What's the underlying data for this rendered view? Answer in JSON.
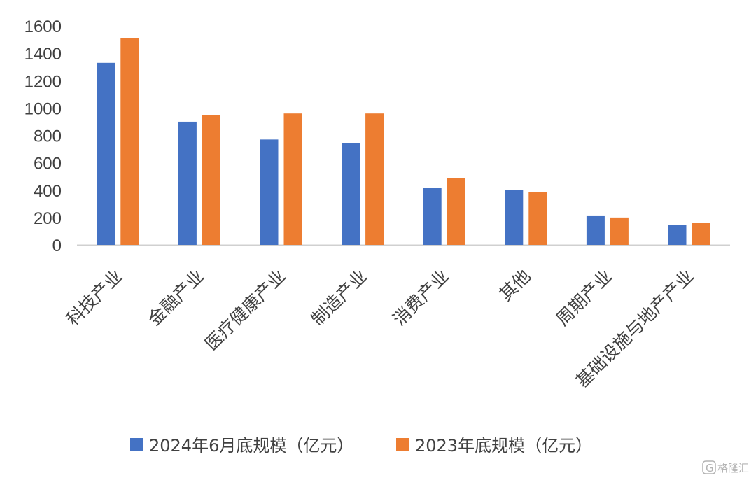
{
  "chart_data": {
    "type": "bar",
    "categories": [
      "科技产业",
      "金融产业",
      "医疗健康产业",
      "制造产业",
      "消费产业",
      "其他",
      "周期产业",
      "基础设施与地产产业"
    ],
    "series": [
      {
        "name": "2024年6月底规模（亿元）",
        "color": "#4472C4",
        "values": [
          1330,
          900,
          770,
          745,
          415,
          400,
          215,
          145
        ]
      },
      {
        "name": "2023年底规模（亿元）",
        "color": "#ED7D31",
        "values": [
          1510,
          950,
          960,
          960,
          490,
          385,
          200,
          160
        ]
      }
    ],
    "yticks": [
      "1600",
      "1400",
      "1200",
      "1000",
      "800",
      "600",
      "400",
      "200",
      "0"
    ],
    "ylim": [
      0,
      1600
    ],
    "grid": false,
    "legend_position": "bottom",
    "title": "",
    "xlabel": "",
    "ylabel": ""
  },
  "watermark": {
    "text": "格隆汇",
    "icon": "g-logo-icon"
  }
}
